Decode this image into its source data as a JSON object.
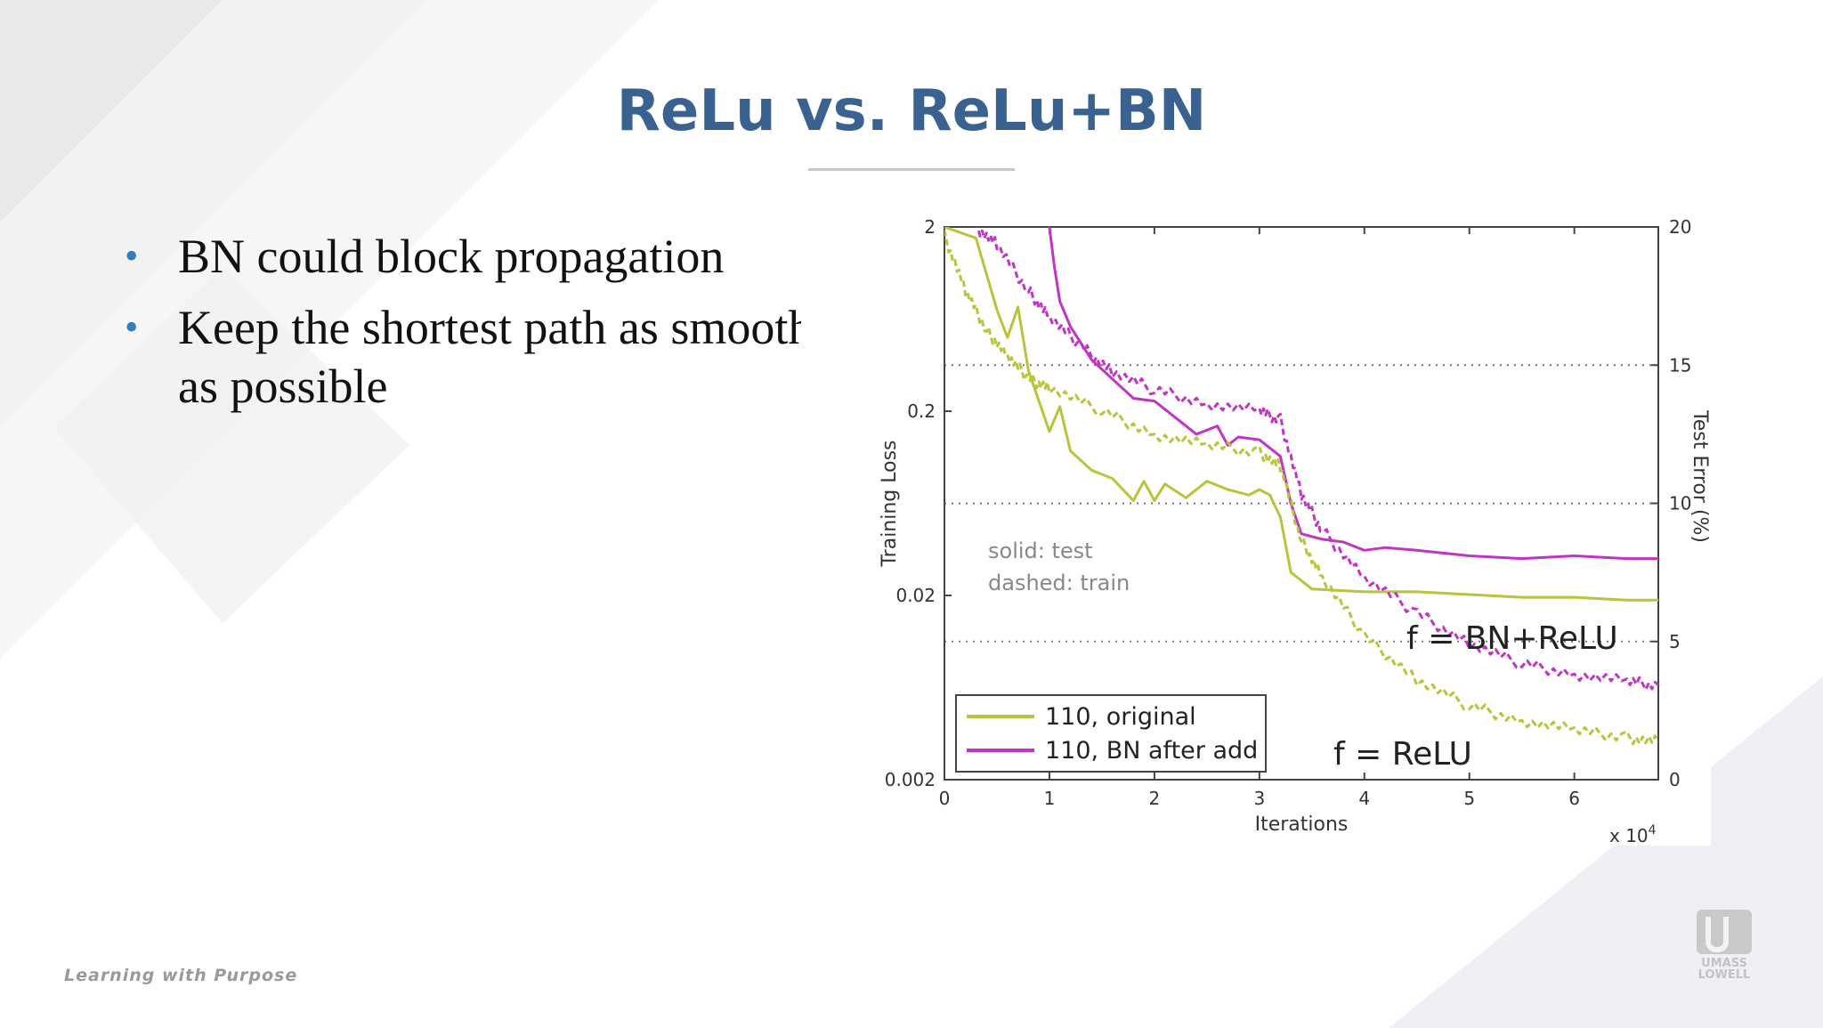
{
  "slide": {
    "title": "ReLu vs. ReLu+BN",
    "bullets": [
      "BN could block propagation",
      "Keep the shortest path as smooth as possible"
    ],
    "footer": "Learning with Purpose",
    "logo": {
      "line1": "UMASS",
      "line2": "LOWELL"
    }
  },
  "colors": {
    "title": "#3a6291",
    "bullet": "#2f7fc1",
    "original": "#b9c43a",
    "bn_after_add": "#c134c6",
    "axis": "#444444"
  },
  "chart_data": {
    "type": "line",
    "xlabel": "Iterations",
    "x_multiplier": "x 10^4",
    "ylabel_left": "Training Loss",
    "ylabel_right": "Test Error (%)",
    "x_ticks": [
      "0",
      "1",
      "2",
      "3",
      "4",
      "5",
      "6"
    ],
    "y_left_ticks": [
      "0.002",
      "0.02",
      "0.2",
      "2"
    ],
    "y_right_ticks": [
      "0",
      "5",
      "10",
      "15",
      "20"
    ],
    "xlim": [
      0,
      6.8
    ],
    "ylim_left": [
      0.002,
      2
    ],
    "ylim_right": [
      0,
      20
    ],
    "y_left_scale": "log",
    "grid": "dotted horizontal at right-axis 5, 10, 15",
    "notes": [
      "solid: test",
      "dashed: train"
    ],
    "annotations": [
      "f = BN+ReLU",
      "f = ReLU"
    ],
    "legend": {
      "placement": "bottom-left",
      "entries": [
        {
          "label": "110, original",
          "color": "#b9c43a"
        },
        {
          "label": "110, BN after add",
          "color": "#c134c6"
        }
      ]
    },
    "series": [
      {
        "name": "110, original",
        "style": "solid",
        "axis": "right",
        "color": "#b9c43a",
        "x": [
          0,
          0.3,
          0.5,
          0.6,
          0.7,
          0.8,
          1.0,
          1.1,
          1.2,
          1.4,
          1.6,
          1.8,
          1.9,
          2.0,
          2.1,
          2.3,
          2.5,
          2.7,
          2.9,
          3.0,
          3.1,
          3.2,
          3.3,
          3.5,
          4.0,
          4.5,
          5.0,
          5.5,
          6.0,
          6.5,
          6.8
        ],
        "y": [
          20,
          19.6,
          17,
          16,
          17.1,
          14.8,
          12.6,
          13.5,
          11.9,
          11.2,
          10.9,
          10.1,
          10.8,
          10.1,
          10.7,
          10.2,
          10.8,
          10.5,
          10.3,
          10.5,
          10.3,
          9.5,
          7.5,
          6.9,
          6.8,
          6.8,
          6.7,
          6.6,
          6.6,
          6.5,
          6.5
        ]
      },
      {
        "name": "110, BN after add",
        "style": "solid",
        "axis": "right",
        "color": "#c134c6",
        "x": [
          1.0,
          1.05,
          1.1,
          1.2,
          1.4,
          1.6,
          1.8,
          2.0,
          2.2,
          2.4,
          2.6,
          2.7,
          2.8,
          3.0,
          3.2,
          3.3,
          3.4,
          3.6,
          3.8,
          4.0,
          4.2,
          4.5,
          5.0,
          5.5,
          6.0,
          6.5,
          6.8
        ],
        "y": [
          20,
          18.5,
          17.3,
          16.4,
          15.2,
          14.5,
          13.8,
          13.7,
          13.1,
          12.5,
          12.8,
          12.1,
          12.4,
          12.3,
          11.7,
          10.0,
          8.9,
          8.7,
          8.6,
          8.3,
          8.4,
          8.3,
          8.1,
          8.0,
          8.1,
          8.0,
          8.0
        ]
      },
      {
        "name": "110, original (train)",
        "style": "dashed",
        "axis": "left",
        "color": "#b9c43a",
        "x": [
          0,
          0.2,
          0.4,
          0.6,
          0.8,
          1.0,
          1.5,
          2.0,
          2.5,
          3.0,
          3.2,
          3.4,
          3.6,
          4.0,
          4.5,
          5.0,
          5.5,
          6.0,
          6.5,
          6.8
        ],
        "y": [
          1.8,
          0.9,
          0.55,
          0.4,
          0.3,
          0.27,
          0.2,
          0.15,
          0.13,
          0.12,
          0.1,
          0.04,
          0.025,
          0.012,
          0.007,
          0.005,
          0.0042,
          0.0037,
          0.0034,
          0.0032
        ]
      },
      {
        "name": "110, BN after add (train)",
        "style": "dashed",
        "axis": "left",
        "color": "#c134c6",
        "x": [
          0.3,
          0.5,
          0.8,
          1.0,
          1.3,
          1.6,
          2.0,
          2.5,
          3.0,
          3.2,
          3.4,
          3.6,
          4.0,
          4.5,
          5.0,
          5.5,
          6.0,
          6.5,
          6.8
        ],
        "y": [
          2.0,
          1.6,
          0.9,
          0.65,
          0.45,
          0.33,
          0.26,
          0.22,
          0.2,
          0.18,
          0.07,
          0.045,
          0.025,
          0.016,
          0.011,
          0.0085,
          0.0075,
          0.0068,
          0.0065
        ]
      }
    ]
  }
}
